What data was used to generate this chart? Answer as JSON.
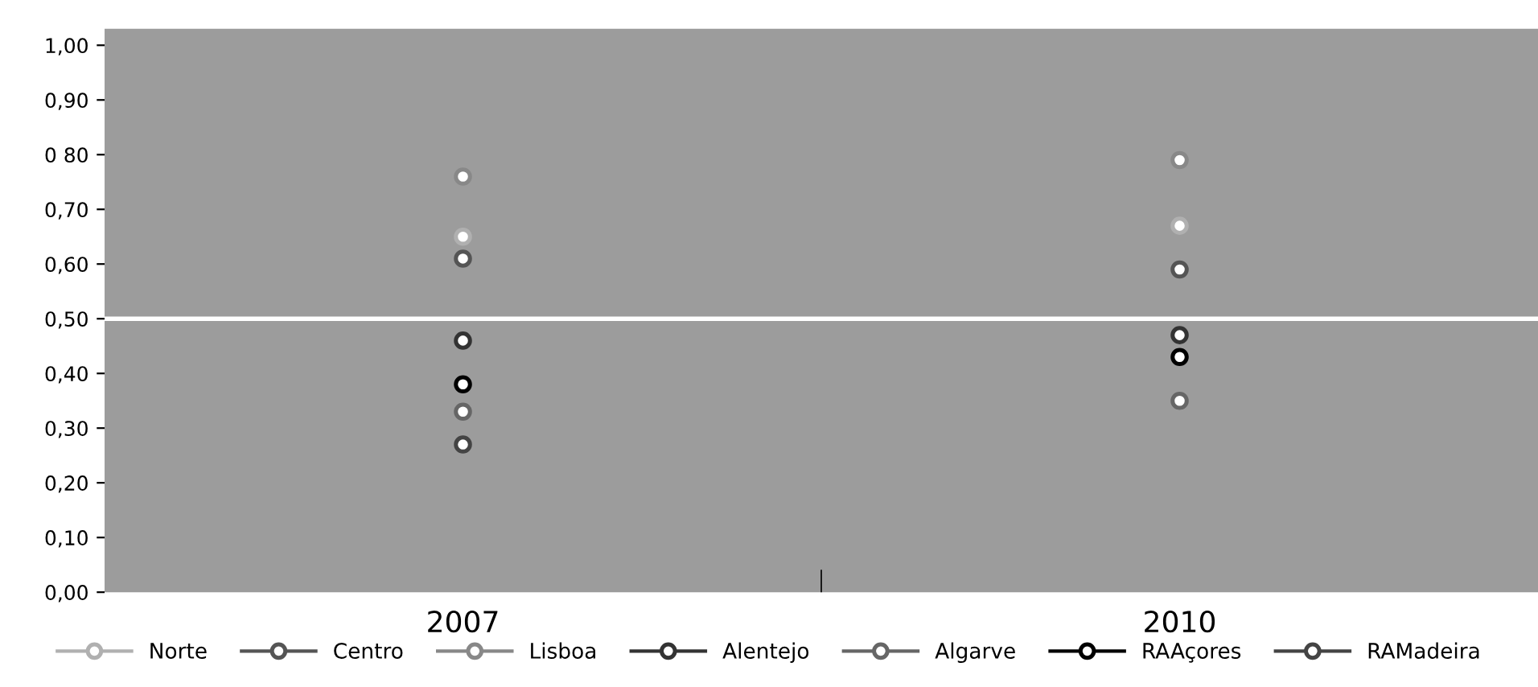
{
  "chart_data": {
    "type": "scatter",
    "categories": [
      "2007",
      "2010"
    ],
    "series": [
      {
        "name": "Norte",
        "color": "#b0b0b0",
        "values": [
          0.65,
          0.67
        ]
      },
      {
        "name": "Centro",
        "color": "#555555",
        "values": [
          0.61,
          0.59
        ]
      },
      {
        "name": "Lisboa",
        "color": "#888888",
        "values": [
          0.76,
          0.79
        ]
      },
      {
        "name": "Alentejo",
        "color": "#333333",
        "values": [
          0.46,
          0.47
        ]
      },
      {
        "name": "Algarve",
        "color": "#666666",
        "values": [
          0.33,
          0.35
        ]
      },
      {
        "name": "RAAçores",
        "color": "#000000",
        "values": [
          0.38,
          0.43
        ]
      },
      {
        "name": "RAMadeira",
        "color": "#444444",
        "values": [
          0.27,
          null
        ]
      }
    ],
    "ylim": [
      0,
      1.03
    ],
    "yticks": [
      {
        "value": 0,
        "label": "0,00"
      },
      {
        "value": 0.1,
        "label": "0,10"
      },
      {
        "value": 0.2,
        "label": "0,20"
      },
      {
        "value": 0.3,
        "label": "0,30"
      },
      {
        "value": 0.4,
        "label": "0,40"
      },
      {
        "value": 0.5,
        "label": "0,50"
      },
      {
        "value": 0.6,
        "label": "0,60"
      },
      {
        "value": 0.7,
        "label": "0,70"
      },
      {
        "value": 0.8,
        "label": "0 80"
      },
      {
        "value": 0.9,
        "label": "0,90"
      },
      {
        "value": 1.0,
        "label": "1,00"
      }
    ],
    "ref_lines": [
      {
        "axis": "y",
        "value": 0.5,
        "label": null,
        "color": "#ffffff"
      }
    ],
    "marker": "circle",
    "legend": "bottom",
    "grid": false
  }
}
